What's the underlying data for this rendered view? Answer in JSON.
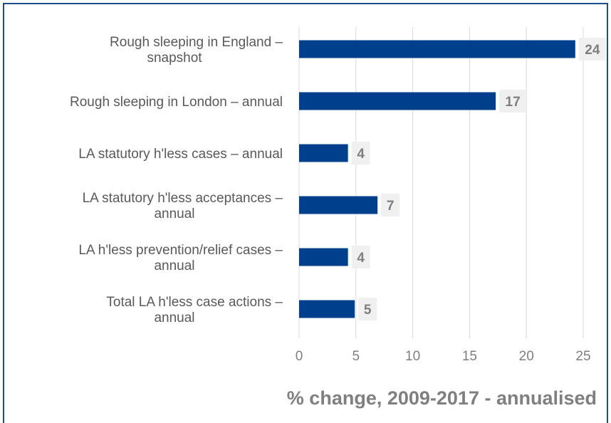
{
  "chart_data": {
    "type": "bar",
    "orientation": "horizontal",
    "categories": [
      [
        "Rough sleeping in England –",
        "snapshot"
      ],
      [
        "Rough sleeping in London – annual"
      ],
      [
        "LA statutory h'less cases – annual"
      ],
      [
        "LA statutory h'less acceptances –",
        "annual"
      ],
      [
        "LA h'less prevention/relief cases –",
        "annual"
      ],
      [
        "Total LA h'less case actions –",
        "annual"
      ]
    ],
    "values": [
      24.3,
      17.3,
      4.3,
      6.9,
      4.3,
      4.9
    ],
    "data_labels": [
      "24",
      "17",
      "4",
      "7",
      "4",
      "5"
    ],
    "xlim": [
      0,
      25
    ],
    "xticks": [
      0,
      5,
      10,
      15,
      20,
      25
    ],
    "xlabel": "% change, 2009-2017 - annualised",
    "grid": "vertical",
    "bar_color": "#003f8c",
    "label_bg": "#f0f0f0",
    "label_color": "#7f7f7f"
  }
}
